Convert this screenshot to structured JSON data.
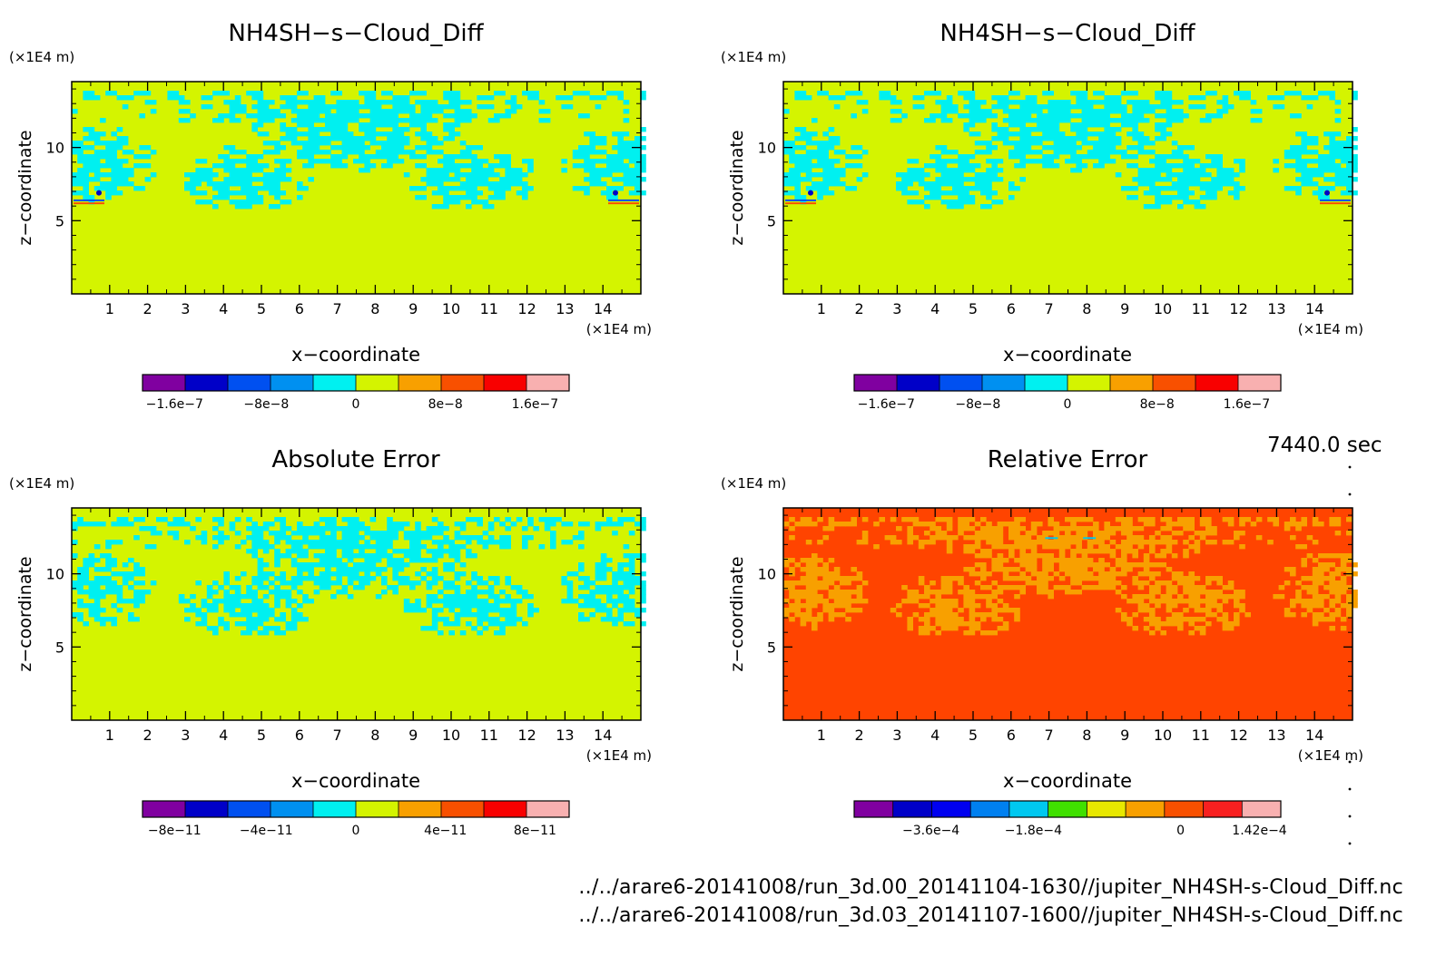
{
  "figure": {
    "time_label": "7440.0 sec",
    "footer_lines": [
      "../../arare6-20141008/run_3d.00_20141104-1630//jupiter_NH4SH-s-Cloud_Diff.nc",
      "../../arare6-20141008/run_3d.03_20141107-1600//jupiter_NH4SH-s-Cloud_Diff.nc"
    ]
  },
  "chart_data": [
    {
      "type": "heatmap",
      "title": "NH4SH−s−Cloud_Diff",
      "xlabel": "x−coordinate",
      "ylabel": "z−coordinate",
      "x_unit": "(×1E4 m)",
      "y_unit": "(×1E4 m)",
      "xlim": [
        0,
        15
      ],
      "ylim": [
        0,
        14.5
      ],
      "x_ticks": [
        1,
        2,
        3,
        4,
        5,
        6,
        7,
        8,
        9,
        10,
        11,
        12,
        13,
        14
      ],
      "y_ticks": [
        5,
        10
      ],
      "background_color": "#d4f400",
      "pattern_color": "#00f0f0",
      "colorbar": {
        "colors": [
          "#8000a0",
          "#0000c8",
          "#0050f0",
          "#0090f0",
          "#00f0f0",
          "#d4f400",
          "#f8a000",
          "#f85000",
          "#f80000",
          "#f8b0b0"
        ],
        "tick_labels": [
          "−1.6e−7",
          "−8e−8",
          "0",
          "8e−8",
          "1.6e−7"
        ]
      }
    },
    {
      "type": "heatmap",
      "title": "NH4SH−s−Cloud_Diff",
      "xlabel": "x−coordinate",
      "ylabel": "z−coordinate",
      "x_unit": "(×1E4 m)",
      "y_unit": "(×1E4 m)",
      "xlim": [
        0,
        15
      ],
      "ylim": [
        0,
        14.5
      ],
      "x_ticks": [
        1,
        2,
        3,
        4,
        5,
        6,
        7,
        8,
        9,
        10,
        11,
        12,
        13,
        14
      ],
      "y_ticks": [
        5,
        10
      ],
      "background_color": "#d4f400",
      "pattern_color": "#00f0f0",
      "colorbar": {
        "colors": [
          "#8000a0",
          "#0000c8",
          "#0050f0",
          "#0090f0",
          "#00f0f0",
          "#d4f400",
          "#f8a000",
          "#f85000",
          "#f80000",
          "#f8b0b0"
        ],
        "tick_labels": [
          "−1.6e−7",
          "−8e−8",
          "0",
          "8e−8",
          "1.6e−7"
        ]
      }
    },
    {
      "type": "heatmap",
      "title": "Absolute Error",
      "xlabel": "x−coordinate",
      "ylabel": "z−coordinate",
      "x_unit": "(×1E4 m)",
      "y_unit": "(×1E4 m)",
      "xlim": [
        0,
        15
      ],
      "ylim": [
        0,
        14.5
      ],
      "x_ticks": [
        1,
        2,
        3,
        4,
        5,
        6,
        7,
        8,
        9,
        10,
        11,
        12,
        13,
        14
      ],
      "y_ticks": [
        5,
        10
      ],
      "background_color": "#d4f400",
      "pattern_color": "#00f0f0",
      "colorbar": {
        "colors": [
          "#8000a0",
          "#0000c8",
          "#0050f0",
          "#0090f0",
          "#00f0f0",
          "#d4f400",
          "#f8a000",
          "#f85000",
          "#f80000",
          "#f8b0b0"
        ],
        "tick_labels": [
          "−8e−11",
          "−4e−11",
          "0",
          "4e−11",
          "8e−11"
        ]
      }
    },
    {
      "type": "heatmap",
      "title": "Relative Error",
      "xlabel": "x−coordinate",
      "ylabel": "z−coordinate",
      "x_unit": "(×1E4 m)",
      "y_unit": "(×1E4 m)",
      "xlim": [
        0,
        15
      ],
      "ylim": [
        0,
        14.5
      ],
      "x_ticks": [
        1,
        2,
        3,
        4,
        5,
        6,
        7,
        8,
        9,
        10,
        11,
        12,
        13,
        14
      ],
      "y_ticks": [
        5,
        10
      ],
      "background_color": "#ff4400",
      "pattern_color": "#f8a000",
      "colorbar": {
        "colors": [
          "#8000a0",
          "#0000c8",
          "#0000f0",
          "#0080f0",
          "#00c8f0",
          "#40e000",
          "#e8e800",
          "#f8a000",
          "#f85000",
          "#f82020",
          "#f8b0b0"
        ],
        "tick_labels": [
          "−3.6e−4",
          "−1.8e−4",
          "0",
          "1.42e−4"
        ]
      }
    }
  ]
}
